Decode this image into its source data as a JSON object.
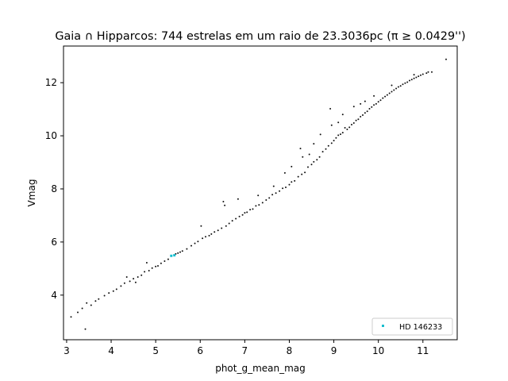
{
  "chart_data": {
    "type": "scatter",
    "title": "Gaia ∩ Hipparcos: 744 estrelas em um raio de 23.3036pc (π ≥ 0.0429'')",
    "xlabel": "phot_g_mean_mag",
    "ylabel": "Vmag",
    "xlim": [
      2.93,
      11.77
    ],
    "ylim": [
      2.32,
      13.38
    ],
    "xticks": [
      3,
      4,
      5,
      6,
      7,
      8,
      9,
      10,
      11
    ],
    "yticks": [
      4,
      6,
      8,
      10,
      12
    ],
    "grid": false,
    "legend_position": "bottom-right",
    "colors": {
      "points": "#111111",
      "highlight": "#17becf"
    },
    "series": [
      {
        "points": [
          [
            3.1,
            3.18
          ],
          [
            3.25,
            3.35
          ],
          [
            3.35,
            3.5
          ],
          [
            3.42,
            2.72
          ],
          [
            3.45,
            3.7
          ],
          [
            3.55,
            3.62
          ],
          [
            3.65,
            3.78
          ],
          [
            3.72,
            3.85
          ],
          [
            3.85,
            3.98
          ],
          [
            3.95,
            4.08
          ],
          [
            4.05,
            4.15
          ],
          [
            4.12,
            4.22
          ],
          [
            4.22,
            4.34
          ],
          [
            4.3,
            4.45
          ],
          [
            4.35,
            4.68
          ],
          [
            4.42,
            4.52
          ],
          [
            4.5,
            4.62
          ],
          [
            4.55,
            4.48
          ],
          [
            4.6,
            4.68
          ],
          [
            4.68,
            4.75
          ],
          [
            4.75,
            4.88
          ],
          [
            4.8,
            5.22
          ],
          [
            4.85,
            4.92
          ],
          [
            4.92,
            5.02
          ],
          [
            5.0,
            5.08
          ],
          [
            5.05,
            5.1
          ],
          [
            5.12,
            5.2
          ],
          [
            5.2,
            5.28
          ],
          [
            5.28,
            5.35
          ],
          [
            5.45,
            5.55
          ],
          [
            5.5,
            5.58
          ],
          [
            5.55,
            5.62
          ],
          [
            5.6,
            5.66
          ],
          [
            5.7,
            5.74
          ],
          [
            5.8,
            5.86
          ],
          [
            5.88,
            5.95
          ],
          [
            5.95,
            6.02
          ],
          [
            6.02,
            6.6
          ],
          [
            6.05,
            6.14
          ],
          [
            6.12,
            6.2
          ],
          [
            6.2,
            6.24
          ],
          [
            6.25,
            6.3
          ],
          [
            6.32,
            6.38
          ],
          [
            6.4,
            6.44
          ],
          [
            6.48,
            6.52
          ],
          [
            6.52,
            7.52
          ],
          [
            6.55,
            7.38
          ],
          [
            6.58,
            6.6
          ],
          [
            6.65,
            6.7
          ],
          [
            6.72,
            6.8
          ],
          [
            6.8,
            6.88
          ],
          [
            6.85,
            7.62
          ],
          [
            6.88,
            6.96
          ],
          [
            6.95,
            7.02
          ],
          [
            7.0,
            7.1
          ],
          [
            7.05,
            7.12
          ],
          [
            7.12,
            7.22
          ],
          [
            7.18,
            7.24
          ],
          [
            7.25,
            7.36
          ],
          [
            7.3,
            7.75
          ],
          [
            7.32,
            7.4
          ],
          [
            7.4,
            7.48
          ],
          [
            7.48,
            7.58
          ],
          [
            7.55,
            7.66
          ],
          [
            7.62,
            7.78
          ],
          [
            7.65,
            8.1
          ],
          [
            7.7,
            7.84
          ],
          [
            7.78,
            7.92
          ],
          [
            7.85,
            8.02
          ],
          [
            7.9,
            8.6
          ],
          [
            7.92,
            8.06
          ],
          [
            8.0,
            8.16
          ],
          [
            8.05,
            8.84
          ],
          [
            8.05,
            8.26
          ],
          [
            8.12,
            8.3
          ],
          [
            8.2,
            8.46
          ],
          [
            8.25,
            9.52
          ],
          [
            8.28,
            8.55
          ],
          [
            8.35,
            8.62
          ],
          [
            8.42,
            8.82
          ],
          [
            8.45,
            9.3
          ],
          [
            8.5,
            8.92
          ],
          [
            8.55,
            9.02
          ],
          [
            8.62,
            9.1
          ],
          [
            8.68,
            9.2
          ],
          [
            8.75,
            9.4
          ],
          [
            8.82,
            9.5
          ],
          [
            8.88,
            9.62
          ],
          [
            8.92,
            11.02
          ],
          [
            8.95,
            9.72
          ],
          [
            9.0,
            9.82
          ],
          [
            9.05,
            9.92
          ],
          [
            9.1,
            10.02
          ],
          [
            9.15,
            10.06
          ],
          [
            9.2,
            10.12
          ],
          [
            9.25,
            10.3
          ],
          [
            9.3,
            10.24
          ],
          [
            9.35,
            10.32
          ],
          [
            9.4,
            10.42
          ],
          [
            9.45,
            10.48
          ],
          [
            9.5,
            10.58
          ],
          [
            9.55,
            10.62
          ],
          [
            9.6,
            10.72
          ],
          [
            9.65,
            10.78
          ],
          [
            9.7,
            10.86
          ],
          [
            9.75,
            10.92
          ],
          [
            9.8,
            11.02
          ],
          [
            9.85,
            11.08
          ],
          [
            9.9,
            11.16
          ],
          [
            9.95,
            11.2
          ],
          [
            10.0,
            11.28
          ],
          [
            10.05,
            11.34
          ],
          [
            10.1,
            11.42
          ],
          [
            10.15,
            11.48
          ],
          [
            10.2,
            11.54
          ],
          [
            10.25,
            11.6
          ],
          [
            10.3,
            11.66
          ],
          [
            10.35,
            11.72
          ],
          [
            10.4,
            11.78
          ],
          [
            10.45,
            11.84
          ],
          [
            10.5,
            11.88
          ],
          [
            10.55,
            11.94
          ],
          [
            10.6,
            11.98
          ],
          [
            10.65,
            12.02
          ],
          [
            10.7,
            12.08
          ],
          [
            10.75,
            12.12
          ],
          [
            10.8,
            12.16
          ],
          [
            10.85,
            12.2
          ],
          [
            10.9,
            12.24
          ],
          [
            10.95,
            12.28
          ],
          [
            11.0,
            12.32
          ],
          [
            11.08,
            12.36
          ],
          [
            11.12,
            12.4
          ],
          [
            11.2,
            12.4
          ],
          [
            11.52,
            12.88
          ],
          [
            9.2,
            10.8
          ],
          [
            9.45,
            11.1
          ],
          [
            9.6,
            11.2
          ],
          [
            9.1,
            10.5
          ],
          [
            8.95,
            10.4
          ],
          [
            8.7,
            10.05
          ],
          [
            8.55,
            9.7
          ],
          [
            8.3,
            9.2
          ],
          [
            9.7,
            11.3
          ],
          [
            9.9,
            11.5
          ],
          [
            10.3,
            11.9
          ],
          [
            10.8,
            12.3
          ]
        ]
      }
    ],
    "highlight": {
      "label": "HD 146233",
      "points": [
        [
          5.35,
          5.48
        ],
        [
          5.42,
          5.5
        ]
      ]
    }
  }
}
